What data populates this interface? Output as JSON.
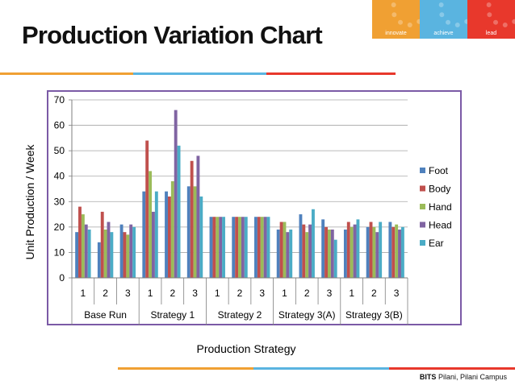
{
  "slide": {
    "title": "Production Variation Chart"
  },
  "brand": {
    "segments": [
      {
        "label": "innovate",
        "color": "#f0a033"
      },
      {
        "label": "achieve",
        "color": "#5ab4e0"
      },
      {
        "label": "lead",
        "color": "#e8382c"
      }
    ]
  },
  "footer": {
    "org": "BITS",
    "campus": "Pilani, Pilani Campus"
  },
  "chart_data": {
    "type": "bar",
    "title": "",
    "xlabel": "Production Strategy",
    "ylabel": "Unit Production / Week",
    "ylim": [
      0,
      70
    ],
    "yticks": [
      0,
      10,
      20,
      30,
      40,
      50,
      60,
      70
    ],
    "grid": true,
    "legend_position": "right",
    "groups": [
      {
        "name": "Base Run",
        "categories": [
          "1",
          "2",
          "3"
        ]
      },
      {
        "name": "Strategy 1",
        "categories": [
          "1",
          "2",
          "3"
        ]
      },
      {
        "name": "Strategy 2",
        "categories": [
          "1",
          "2",
          "3"
        ]
      },
      {
        "name": "Strategy 3(A)",
        "categories": [
          "1",
          "2",
          "3"
        ]
      },
      {
        "name": "Strategy 3(B)",
        "categories": [
          "1",
          "2",
          "3"
        ]
      }
    ],
    "series": [
      {
        "name": "Foot",
        "color": "#4f81bd",
        "values": [
          18,
          14,
          21,
          34,
          34,
          36,
          24,
          24,
          24,
          19,
          25,
          23,
          19,
          20,
          22
        ]
      },
      {
        "name": "Body",
        "color": "#c0504d",
        "values": [
          28,
          26,
          18,
          54,
          32,
          46,
          24,
          24,
          24,
          22,
          21,
          20,
          22,
          22,
          20
        ]
      },
      {
        "name": "Hand",
        "color": "#9bbb59",
        "values": [
          25,
          19,
          17,
          42,
          38,
          36,
          24,
          24,
          24,
          22,
          18,
          19,
          20,
          20,
          21
        ]
      },
      {
        "name": "Head",
        "color": "#8064a2",
        "values": [
          21,
          22,
          21,
          26,
          66,
          48,
          24,
          24,
          24,
          18,
          21,
          19,
          21,
          18,
          19
        ]
      },
      {
        "name": "Ear",
        "color": "#4bacc6",
        "values": [
          19,
          18,
          20,
          34,
          52,
          32,
          24,
          24,
          24,
          19,
          27,
          15,
          23,
          22,
          20
        ]
      }
    ]
  }
}
